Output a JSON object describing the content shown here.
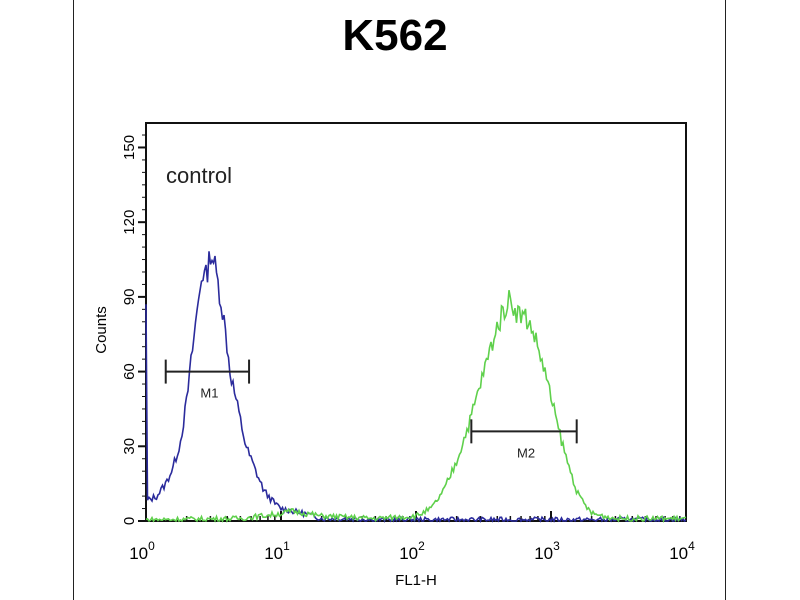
{
  "chart_data": {
    "type": "line",
    "title": "K562",
    "annotation": "control",
    "xlabel": "FL1-H",
    "ylabel": "Counts",
    "xscale": "log",
    "xlim": [
      1,
      10000
    ],
    "ylim": [
      0,
      155
    ],
    "x_ticks": [
      1,
      10,
      100,
      1000,
      10000
    ],
    "x_tick_labels": [
      {
        "base": "10",
        "exp": "0"
      },
      {
        "base": "10",
        "exp": "1"
      },
      {
        "base": "10",
        "exp": "2"
      },
      {
        "base": "10",
        "exp": "3"
      },
      {
        "base": "10",
        "exp": "4"
      }
    ],
    "y_ticks": [
      0,
      30,
      60,
      90,
      120,
      150
    ],
    "y_tick_labels": [
      "0",
      "30",
      "60",
      "90",
      "120",
      "150"
    ],
    "grid": false,
    "series": [
      {
        "color": "#2b2b9c",
        "points": [
          [
            1.0,
            85
          ],
          [
            1.01,
            8
          ],
          [
            1.2,
            10
          ],
          [
            1.4,
            15
          ],
          [
            1.6,
            22
          ],
          [
            1.8,
            32
          ],
          [
            2.0,
            48
          ],
          [
            2.2,
            68
          ],
          [
            2.4,
            85
          ],
          [
            2.6,
            100
          ],
          [
            2.8,
            98
          ],
          [
            3.0,
            108
          ],
          [
            3.2,
            104
          ],
          [
            3.5,
            92
          ],
          [
            3.8,
            80
          ],
          [
            4.2,
            60
          ],
          [
            4.8,
            45
          ],
          [
            5.5,
            30
          ],
          [
            6.5,
            20
          ],
          [
            7.5,
            12
          ],
          [
            9,
            7
          ],
          [
            10,
            5
          ],
          [
            12,
            4
          ],
          [
            15,
            3
          ],
          [
            20,
            1
          ],
          [
            30,
            1
          ],
          [
            50,
            0.5
          ],
          [
            100,
            0.5
          ],
          [
            1000,
            0.5
          ],
          [
            10000,
            0.5
          ]
        ]
      },
      {
        "color": "#5fd04c",
        "points": [
          [
            1,
            0.5
          ],
          [
            5,
            1
          ],
          [
            10,
            3
          ],
          [
            12,
            4
          ],
          [
            20,
            2
          ],
          [
            50,
            1
          ],
          [
            100,
            2
          ],
          [
            130,
            5
          ],
          [
            160,
            12
          ],
          [
            200,
            24
          ],
          [
            250,
            40
          ],
          [
            300,
            55
          ],
          [
            350,
            68
          ],
          [
            400,
            78
          ],
          [
            450,
            85
          ],
          [
            500,
            90
          ],
          [
            550,
            84
          ],
          [
            650,
            82
          ],
          [
            750,
            75
          ],
          [
            900,
            60
          ],
          [
            1100,
            40
          ],
          [
            1300,
            25
          ],
          [
            1600,
            10
          ],
          [
            2000,
            3
          ],
          [
            3000,
            1
          ],
          [
            10000,
            1
          ]
        ]
      }
    ],
    "markers": [
      {
        "label": "M1",
        "range": [
          1.4,
          5.8
        ],
        "y": 60
      },
      {
        "label": "M2",
        "range": [
          257,
          1550
        ],
        "y": 36
      }
    ]
  }
}
